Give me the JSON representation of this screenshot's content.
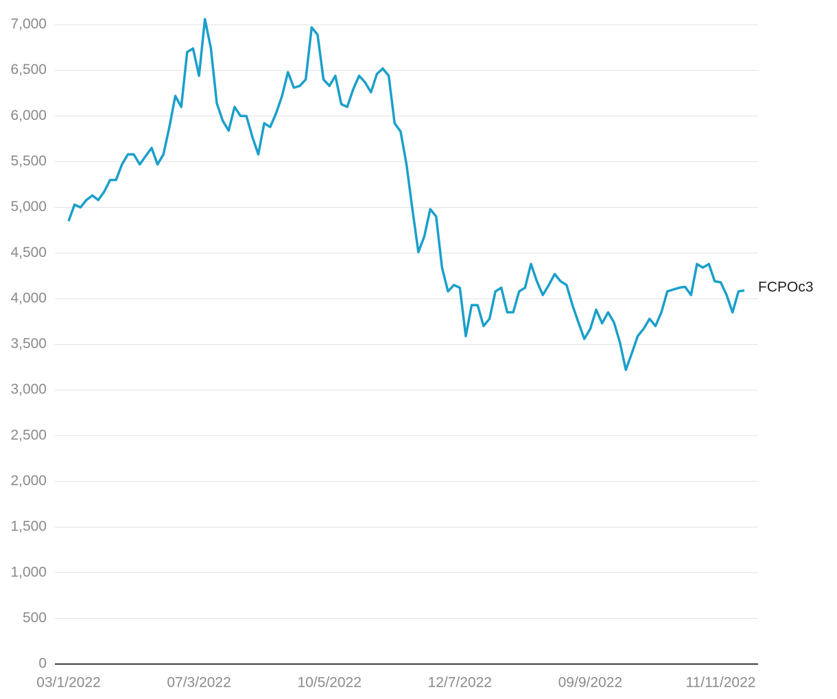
{
  "chart_data": {
    "type": "line",
    "categories": [
      "03/1/2022",
      null,
      null,
      null,
      null,
      null,
      null,
      null,
      null,
      null,
      null,
      null,
      null,
      null,
      null,
      null,
      null,
      null,
      null,
      null,
      null,
      null,
      "07/3/2022",
      null,
      null,
      null,
      null,
      null,
      null,
      null,
      null,
      null,
      null,
      null,
      null,
      null,
      null,
      null,
      null,
      null,
      null,
      null,
      null,
      null,
      "10/5/2022",
      null,
      null,
      null,
      null,
      null,
      null,
      null,
      null,
      null,
      null,
      null,
      null,
      null,
      null,
      null,
      null,
      null,
      null,
      null,
      null,
      null,
      "12/7/2022",
      null,
      null,
      null,
      null,
      null,
      null,
      null,
      null,
      null,
      null,
      null,
      null,
      null,
      null,
      null,
      null,
      null,
      null,
      null,
      null,
      null,
      "09/9/2022",
      null,
      null,
      null,
      null,
      null,
      null,
      null,
      null,
      null,
      null,
      null,
      null,
      null,
      null,
      null,
      null,
      null,
      null,
      null,
      null,
      null,
      "11/11/2022",
      null,
      null,
      null,
      null
    ],
    "series": [
      {
        "name": "FCPOc3",
        "color": "#1a9fcb",
        "values": [
          4850,
          5030,
          5000,
          5080,
          5130,
          5080,
          5170,
          5300,
          5300,
          5470,
          5580,
          5580,
          5470,
          5560,
          5650,
          5470,
          5580,
          5880,
          6220,
          6100,
          6700,
          6740,
          6440,
          7060,
          6740,
          6140,
          5950,
          5840,
          6100,
          6000,
          6000,
          5770,
          5580,
          5920,
          5880,
          6030,
          6220,
          6480,
          6310,
          6330,
          6400,
          6970,
          6890,
          6400,
          6330,
          6440,
          6130,
          6100,
          6290,
          6440,
          6370,
          6260,
          6460,
          6520,
          6440,
          5920,
          5830,
          5470,
          4980,
          4510,
          4680,
          4980,
          4900,
          4340,
          4080,
          4150,
          4120,
          3590,
          3930,
          3930,
          3700,
          3780,
          4080,
          4120,
          3850,
          3850,
          4080,
          4120,
          4380,
          4190,
          4040,
          4150,
          4270,
          4190,
          4150,
          3930,
          3740,
          3560,
          3670,
          3880,
          3730,
          3850,
          3740,
          3520,
          3220,
          3400,
          3590,
          3670,
          3780,
          3700,
          3850,
          4080,
          4100,
          4120,
          4130,
          4040,
          4380,
          4340,
          4380,
          4190,
          4180,
          4040,
          3850,
          4080,
          4090
        ]
      }
    ],
    "ylim": [
      0,
      7000
    ],
    "yticks": [
      0,
      500,
      {
        "value": 1000,
        "label": "1,000"
      },
      {
        "value": 1500,
        "label": "1,500"
      },
      {
        "value": 2000,
        "label": "2,000"
      },
      {
        "value": 2500,
        "label": "2,500"
      },
      {
        "value": 3000,
        "label": "3,000"
      },
      {
        "value": 3500,
        "label": "3,500"
      },
      {
        "value": 4000,
        "label": "4,000"
      },
      {
        "value": 4500,
        "label": "4,500"
      },
      {
        "value": 5000,
        "label": "5,000"
      },
      {
        "value": 5500,
        "label": "5,500"
      },
      {
        "value": 6000,
        "label": "6,000"
      },
      {
        "value": 6500,
        "label": "6,500"
      },
      {
        "value": 7000,
        "label": "7,000"
      }
    ],
    "grid": true
  }
}
